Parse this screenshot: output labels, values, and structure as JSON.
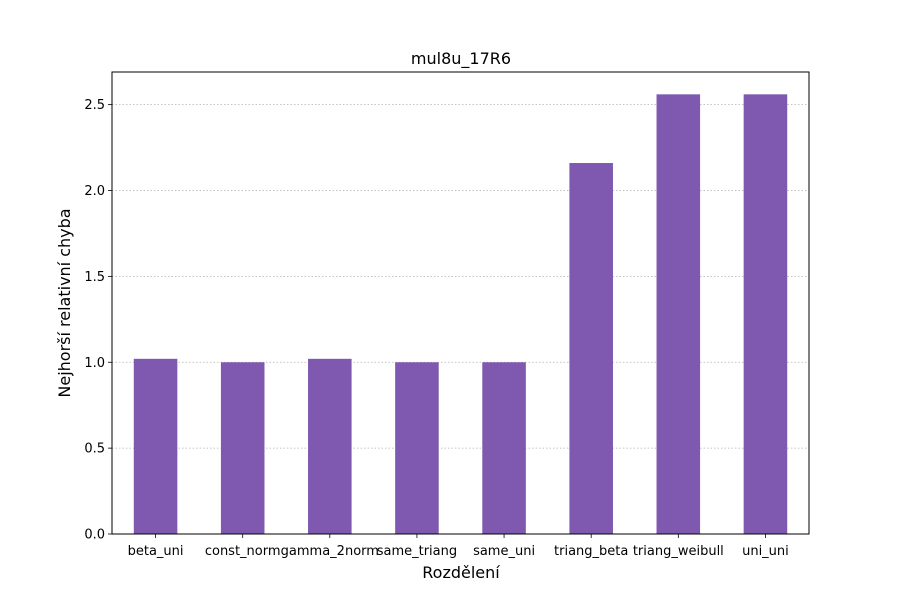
{
  "chart_data": {
    "type": "bar",
    "title": "mul8u_17R6",
    "xlabel": "Rozdělení",
    "ylabel": "Nejhorší relativní chyba",
    "categories": [
      "beta_uni",
      "const_norm",
      "gamma_2norm",
      "same_triang",
      "same_uni",
      "triang_beta",
      "triang_weibull",
      "uni_uni"
    ],
    "values": [
      1.02,
      1.0,
      1.02,
      1.0,
      1.0,
      2.16,
      2.56,
      2.56
    ],
    "ylim": [
      0,
      2.69
    ],
    "yticks": [
      0.0,
      0.5,
      1.0,
      1.5,
      2.0,
      2.5
    ],
    "ytick_labels": [
      "0.0",
      "0.5",
      "1.0",
      "1.5",
      "2.0",
      "2.5"
    ],
    "grid": "y-dotted",
    "bar_color": "#7f59b0"
  }
}
